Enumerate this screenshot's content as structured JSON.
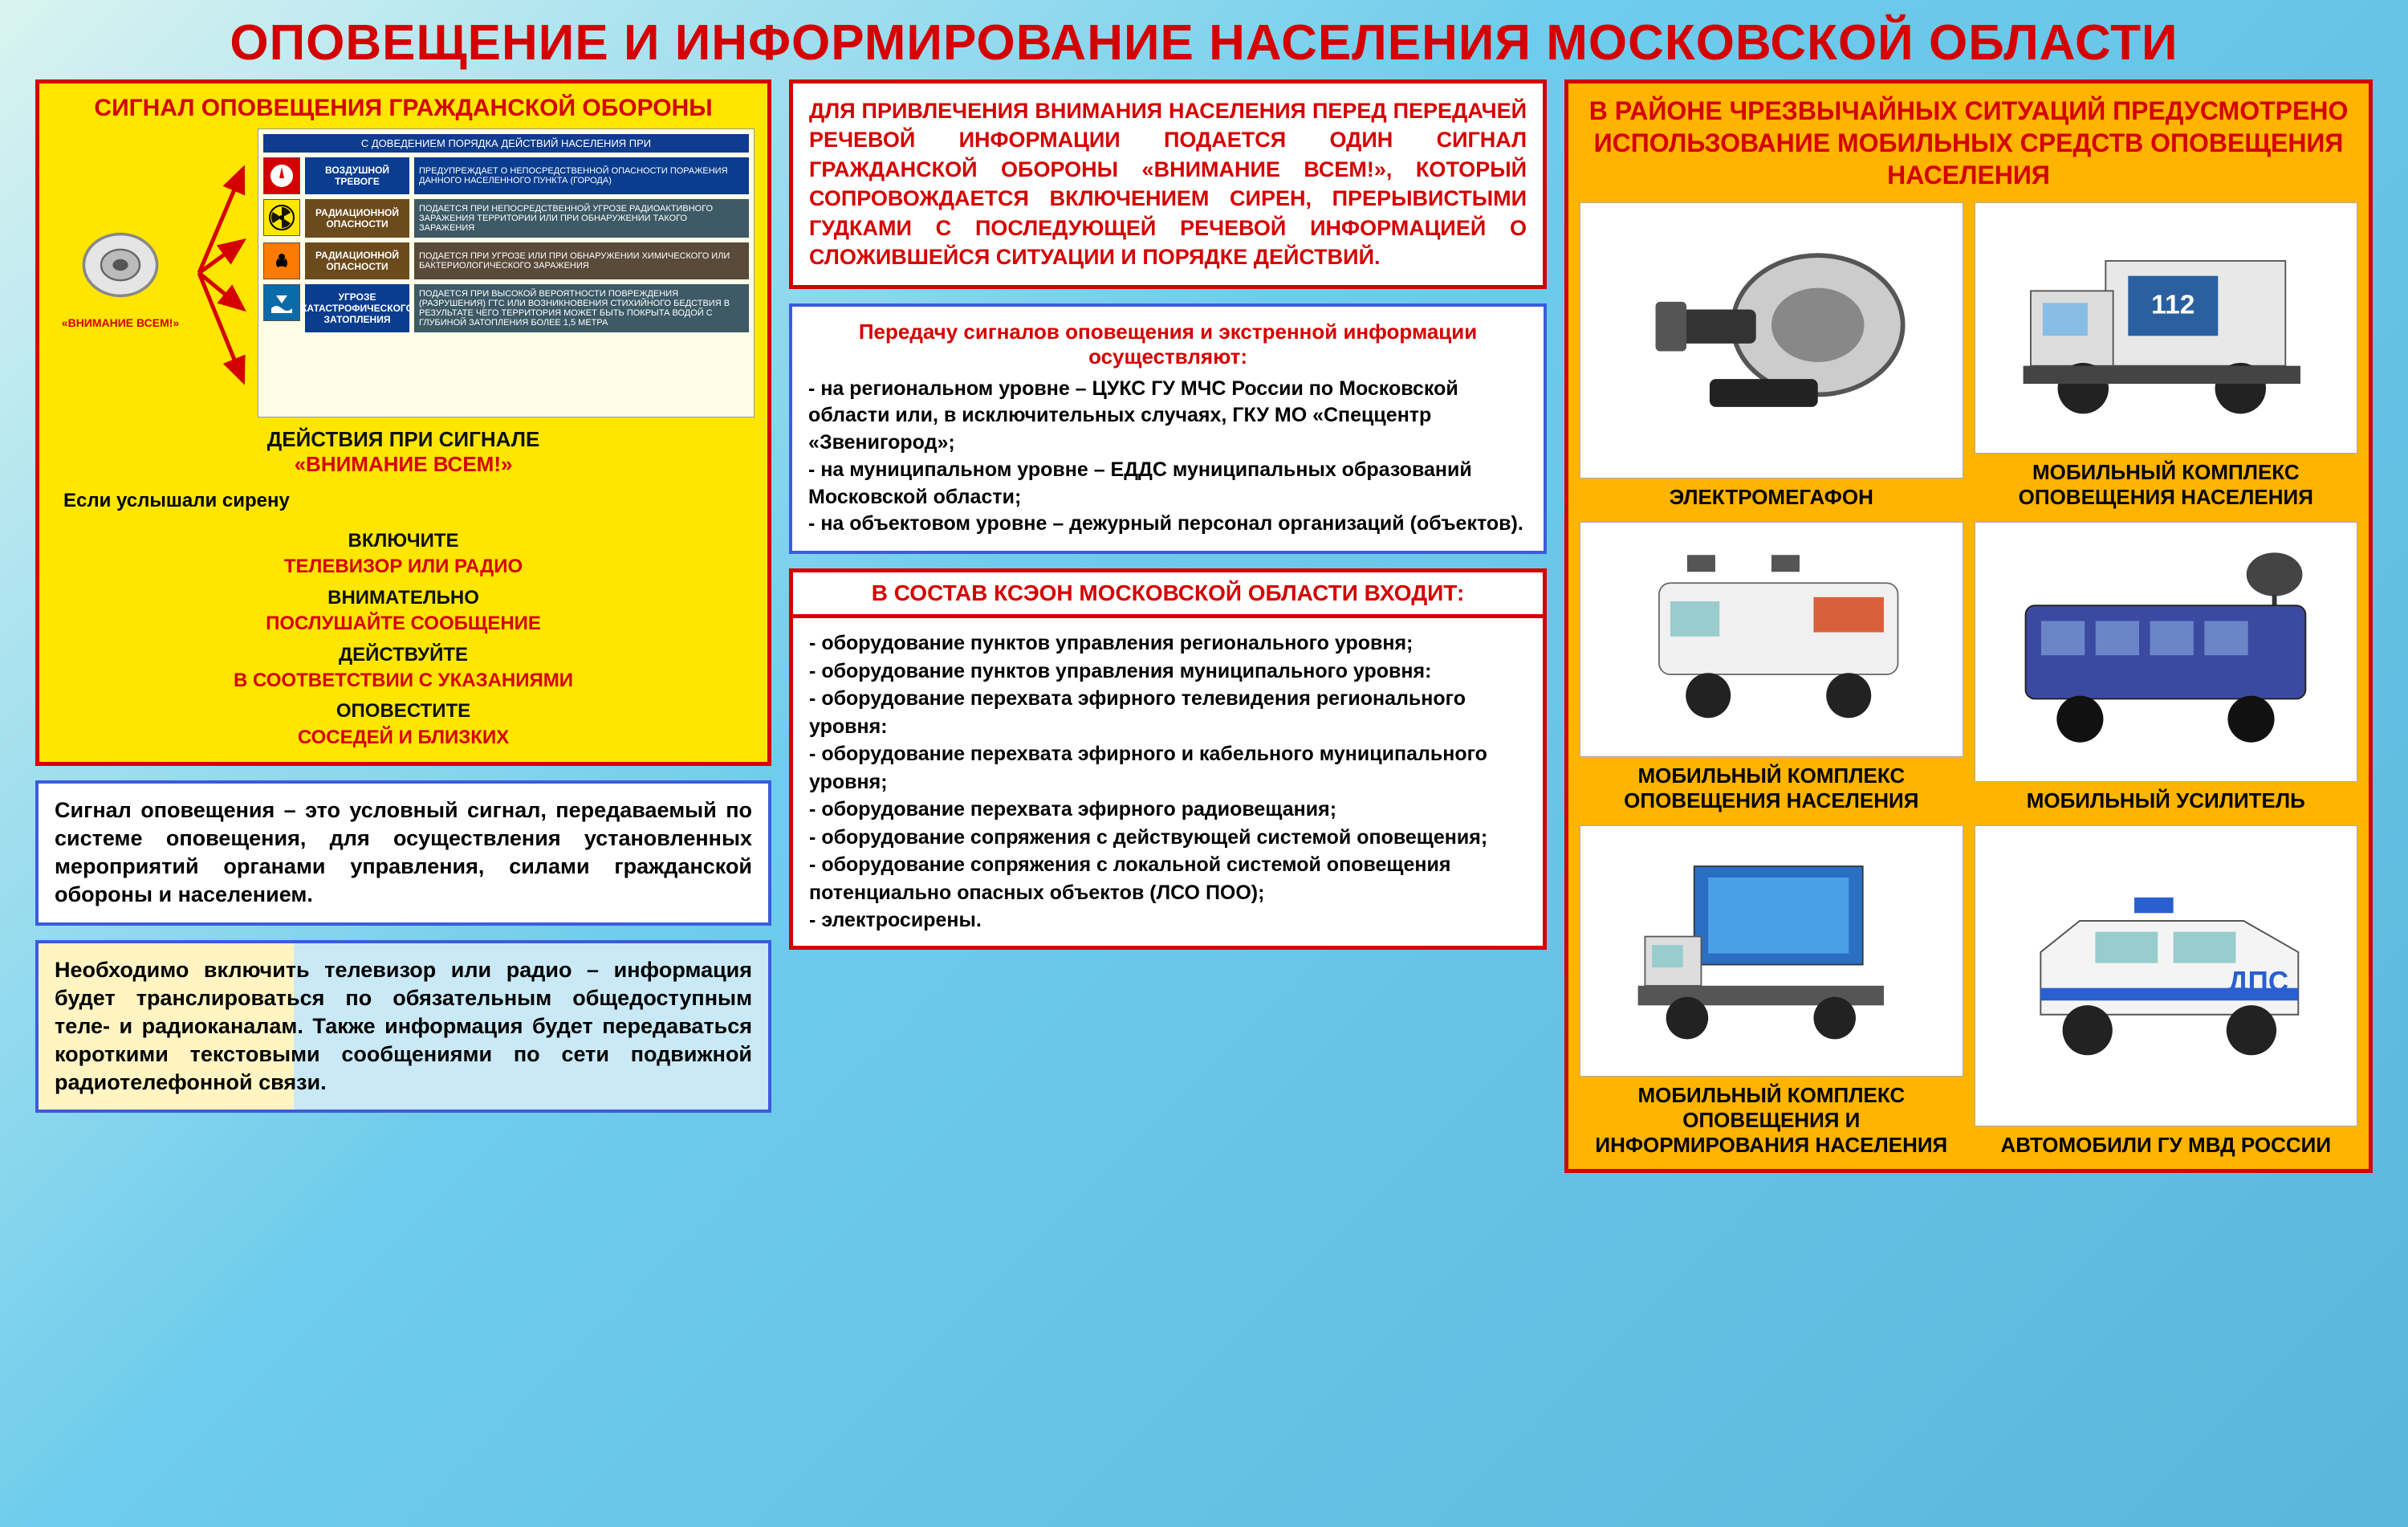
{
  "title": "ОПОВЕЩЕНИЕ И ИНФОРМИРОВАНИЕ НАСЕЛЕНИЯ МОСКОВСКОЙ ОБЛАСТИ",
  "colors": {
    "red": "#d40000",
    "blue": "#3b5cdc",
    "orange": "#ffb400",
    "yellow": "#ffe600",
    "bg_light": "#d9f3f1",
    "bg_dark": "#5cb6dc"
  },
  "left": {
    "signal_title": "СИГНАЛ ОПОВЕЩЕНИЯ ГРАЖДАНСКОЙ ОБОРОНЫ",
    "siren_label": "«ВНИМАНИЕ ВСЕМ!»",
    "table_header": "С ДОВЕДЕНИЕМ ПОРЯДКА ДЕЙСТВИЙ НАСЕЛЕНИЯ ПРИ",
    "rows": [
      {
        "icon_bg": "#d40000",
        "name_bg": "#0a3d8f",
        "desc_bg": "#0a3d8f",
        "name": "ВОЗДУШНОЙ ТРЕВОГЕ",
        "desc": "ПРЕДУПРЕЖДАЕТ О НЕПОСРЕДСТВЕННОЙ ОПАСНОСТИ ПОРАЖЕНИЯ ДАННОГО НАСЕЛЕННОГО ПУНКТА (ГОРОДА)"
      },
      {
        "icon_bg": "#ffe600",
        "name_bg": "#6b4a1c",
        "desc_bg": "#3d5a66",
        "name": "РАДИАЦИОННОЙ ОПАСНОСТИ",
        "desc": "ПОДАЕТСЯ ПРИ НЕПОСРЕДСТВЕННОЙ УГРОЗЕ РАДИОАКТИВНОГО ЗАРАЖЕНИЯ ТЕРРИТОРИИ ИЛИ ПРИ ОБНАРУЖЕНИИ ТАКОГО ЗАРАЖЕНИЯ"
      },
      {
        "icon_bg": "#ff7a00",
        "name_bg": "#6b4a1c",
        "desc_bg": "#5a4a3a",
        "name": "РАДИАЦИОННОЙ ОПАСНОСТИ",
        "desc": "ПОДАЕТСЯ ПРИ УГРОЗЕ ИЛИ ПРИ ОБНАРУЖЕНИИ ХИМИЧЕСКОГО ИЛИ БАКТЕРИОЛОГИЧЕСКОГО ЗАРАЖЕНИЯ"
      },
      {
        "icon_bg": "#0b6aa8",
        "name_bg": "#0a3d8f",
        "desc_bg": "#3d5a66",
        "name": "УГРОЗЕ КАТАСТРОФИЧЕСКОГО ЗАТОПЛЕНИЯ",
        "desc": "ПОДАЕТСЯ ПРИ ВЫСОКОЙ ВЕРОЯТНОСТИ ПОВРЕЖДЕНИЯ (РАЗРУШЕНИЯ) ГТС ИЛИ ВОЗНИКНОВЕНИЯ СТИХИЙНОГО БЕДСТВИЯ В РЕЗУЛЬТАТЕ ЧЕГО ТЕРРИТОРИЯ МОЖЕТ БЫТЬ ПОКРЫТА ВОДОЙ С ГЛУБИНОЙ ЗАТОПЛЕНИЯ БОЛЕЕ 1,5 МЕТРА"
      }
    ],
    "actions_heading_black": "ДЕЙСТВИЯ ПРИ СИГНАЛЕ",
    "actions_heading_red": "«ВНИМАНИЕ ВСЕМ!»",
    "if_siren": "Если услышали сирену",
    "actions": [
      {
        "black": "ВКЛЮЧИТЕ",
        "red": "ТЕЛЕВИЗОР ИЛИ РАДИО"
      },
      {
        "black": "ВНИМАТЕЛЬНО",
        "red": "ПОСЛУШАЙТЕ СООБЩЕНИЕ"
      },
      {
        "black": "ДЕЙСТВУЙТЕ",
        "red": "В СООТВЕТСТВИИ С УКАЗАНИЯМИ"
      },
      {
        "black": "ОПОВЕСТИТЕ",
        "red": "СОСЕДЕЙ И БЛИЗКИХ"
      }
    ],
    "para1": "Сигнал оповещения – это условный сигнал, передаваемый по системе оповещения, для осуществления установленных мероприятий органами управления, силами гражданской обороны и населением.",
    "para2": "Необходимо включить телевизор или радио – информация будет транслироваться по обязательным общедоступным теле- и радиоканалам. Также информация будет передаваться короткими текстовыми сообщениями по сети подвижной радиотелефонной связи."
  },
  "mid": {
    "attention_text": "ДЛЯ ПРИВЛЕЧЕНИЯ ВНИМАНИЯ НАСЕЛЕНИЯ ПЕРЕД ПЕРЕДАЧЕЙ РЕЧЕВОЙ ИНФОРМАЦИИ ПОДАЕТСЯ ОДИН СИГНАЛ ГРАЖДАНСКОЙ ОБОРОНЫ «ВНИМАНИЕ ВСЕМ!», КОТОРЫЙ СОПРОВОЖДАЕТСЯ ВКЛЮЧЕНИЕМ СИРЕН, ПРЕРЫВИСТЫМИ ГУДКАМИ С ПОСЛЕДУЮЩЕЙ РЕЧЕВОЙ ИНФОРМАЦИЕЙ О СЛОЖИВШЕЙСЯ СИТУАЦИИ И ПОРЯДКЕ ДЕЙСТВИЙ.",
    "transmit_title": "Передачу сигналов оповещения и экстренной информации осуществляют:",
    "transmit_items": [
      " - на региональном уровне – ЦУКС ГУ МЧС России по Московской области или, в исключительных случаях, ГКУ МО «Спеццентр «Звенигород»;",
      " - на муниципальном уровне – ЕДДС муниципальных образований Московской области;",
      " - на объектовом уровне – дежурный персонал организаций (объектов)."
    ],
    "kseon_title": "В СОСТАВ КСЭОН МОСКОВСКОЙ ОБЛАСТИ ВХОДИТ:",
    "kseon_items": [
      " - оборудование пунктов управления регионального уровня;",
      " - оборудование пунктов управления муниципального уровня:",
      " - оборудование перехвата эфирного телевидения регионального уровня:",
      " - оборудование перехвата эфирного и кабельного муниципального уровня;",
      " - оборудование перехвата эфирного радиовещания;",
      " - оборудование сопряжения с действующей системой оповещения;",
      " - оборудование сопряжения с локальной системой оповещения потенциально опасных объектов (ЛСО ПОО);",
      " - электросирены."
    ]
  },
  "right": {
    "title": "В РАЙОНЕ ЧРЕЗВЫЧАЙНЫХ СИТУАЦИЙ ПРЕДУСМОТРЕНО ИСПОЛЬЗОВАНИЕ МОБИЛЬНЫХ СРЕДСТВ ОПОВЕЩЕНИЯ НАСЕЛЕНИЯ",
    "cells": [
      {
        "caption": "ЭЛЕКТРОМЕГАФОН",
        "type": "megaphone"
      },
      {
        "caption": "МОБИЛЬНЫЙ КОМПЛЕКС ОПОВЕЩЕНИЯ НАСЕЛЕНИЯ",
        "type": "truck"
      },
      {
        "caption": "МОБИЛЬНЫЙ КОМПЛЕКС ОПОВЕЩЕНИЯ НАСЕЛЕНИЯ",
        "type": "van"
      },
      {
        "caption": "МОБИЛЬНЫЙ УСИЛИТЕЛЬ",
        "type": "bus"
      },
      {
        "caption": "МОБИЛЬНЫЙ КОМПЛЕКС ОПОВЕЩЕНИЯ И ИНФОРМИРОВАНИЯ НАСЕЛЕНИЯ",
        "type": "screen-truck"
      },
      {
        "caption": "АВТОМОБИЛИ ГУ МВД РОССИИ",
        "type": "police"
      }
    ]
  }
}
